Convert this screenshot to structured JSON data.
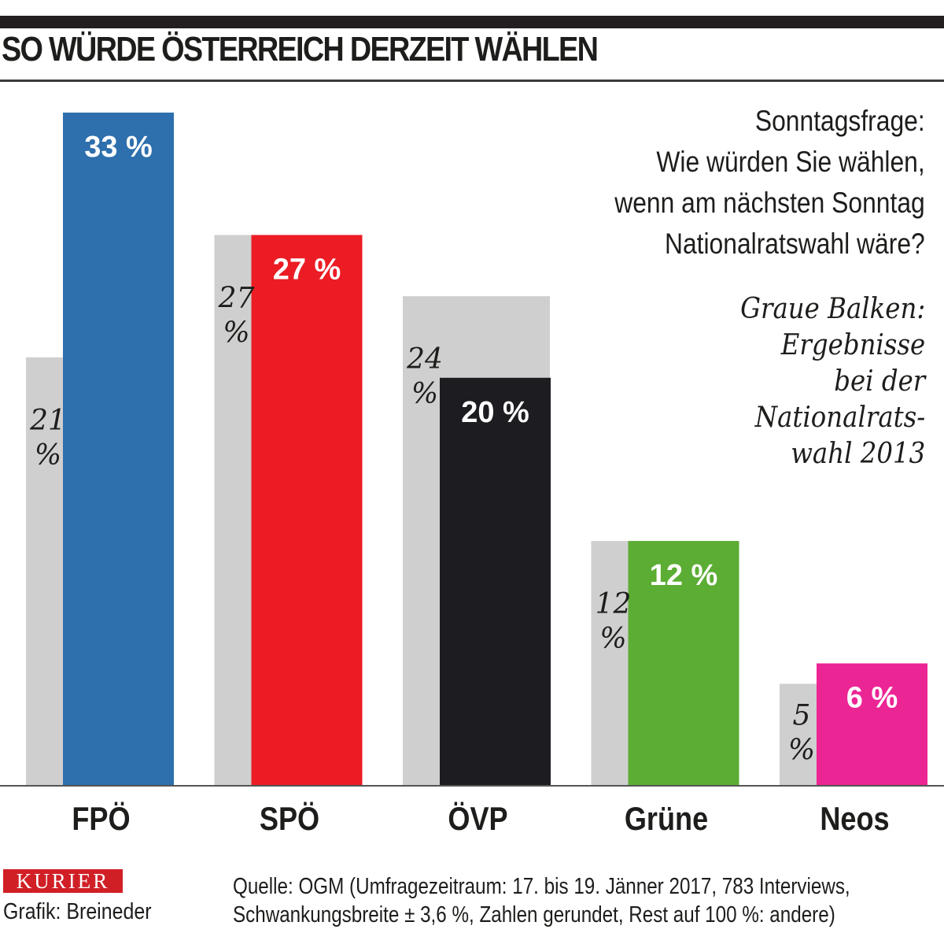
{
  "header": {
    "title": "SO WÜRDE ÖSTERREICH DERZEIT WÄHLEN"
  },
  "question": {
    "lines": [
      "Sonntagsfrage:",
      "Wie würden Sie wählen,",
      "wenn am nächsten Sonntag",
      "Nationalratswahl wäre?"
    ]
  },
  "legend_note": {
    "lines": [
      "Graue Balken:",
      "Ergebnisse",
      "bei der",
      "Nationalrats-",
      "wahl 2013"
    ]
  },
  "footer": {
    "logo": "KURIER",
    "credit": "Grafik: Breineder",
    "source_lines": [
      "Quelle: OGM (Umfragezeitraum: 17. bis 19. Jänner 2017, 783 Interviews,",
      "Schwankungsbreite ± 3,6 %, Zahlen gerundet, Rest auf 100 %: andere)"
    ]
  },
  "chart_data": {
    "type": "bar",
    "title": "SO WÜRDE ÖSTERREICH DERZEIT WÄHLEN",
    "xlabel": "",
    "ylabel": "",
    "ylim": [
      0,
      33
    ],
    "grid": false,
    "categories": [
      "FPÖ",
      "SPÖ",
      "ÖVP",
      "Grüne",
      "Neos"
    ],
    "series": [
      {
        "name": "Nationalratswahl 2013",
        "color": "#cfcfcf",
        "values": [
          21,
          27,
          24,
          12,
          5
        ],
        "labels": [
          "21 %",
          "27 %",
          "24 %",
          "12 %",
          "5 %"
        ]
      },
      {
        "name": "Umfrage Jänner 2017",
        "values": [
          33,
          27,
          20,
          12,
          6
        ],
        "labels": [
          "33 %",
          "27 %",
          "20 %",
          "12 %",
          "6 %"
        ],
        "colors": [
          "#2e6fad",
          "#ec1c24",
          "#1d1c21",
          "#5cad34",
          "#ec2595"
        ]
      }
    ],
    "legend": "right, text annotation"
  }
}
